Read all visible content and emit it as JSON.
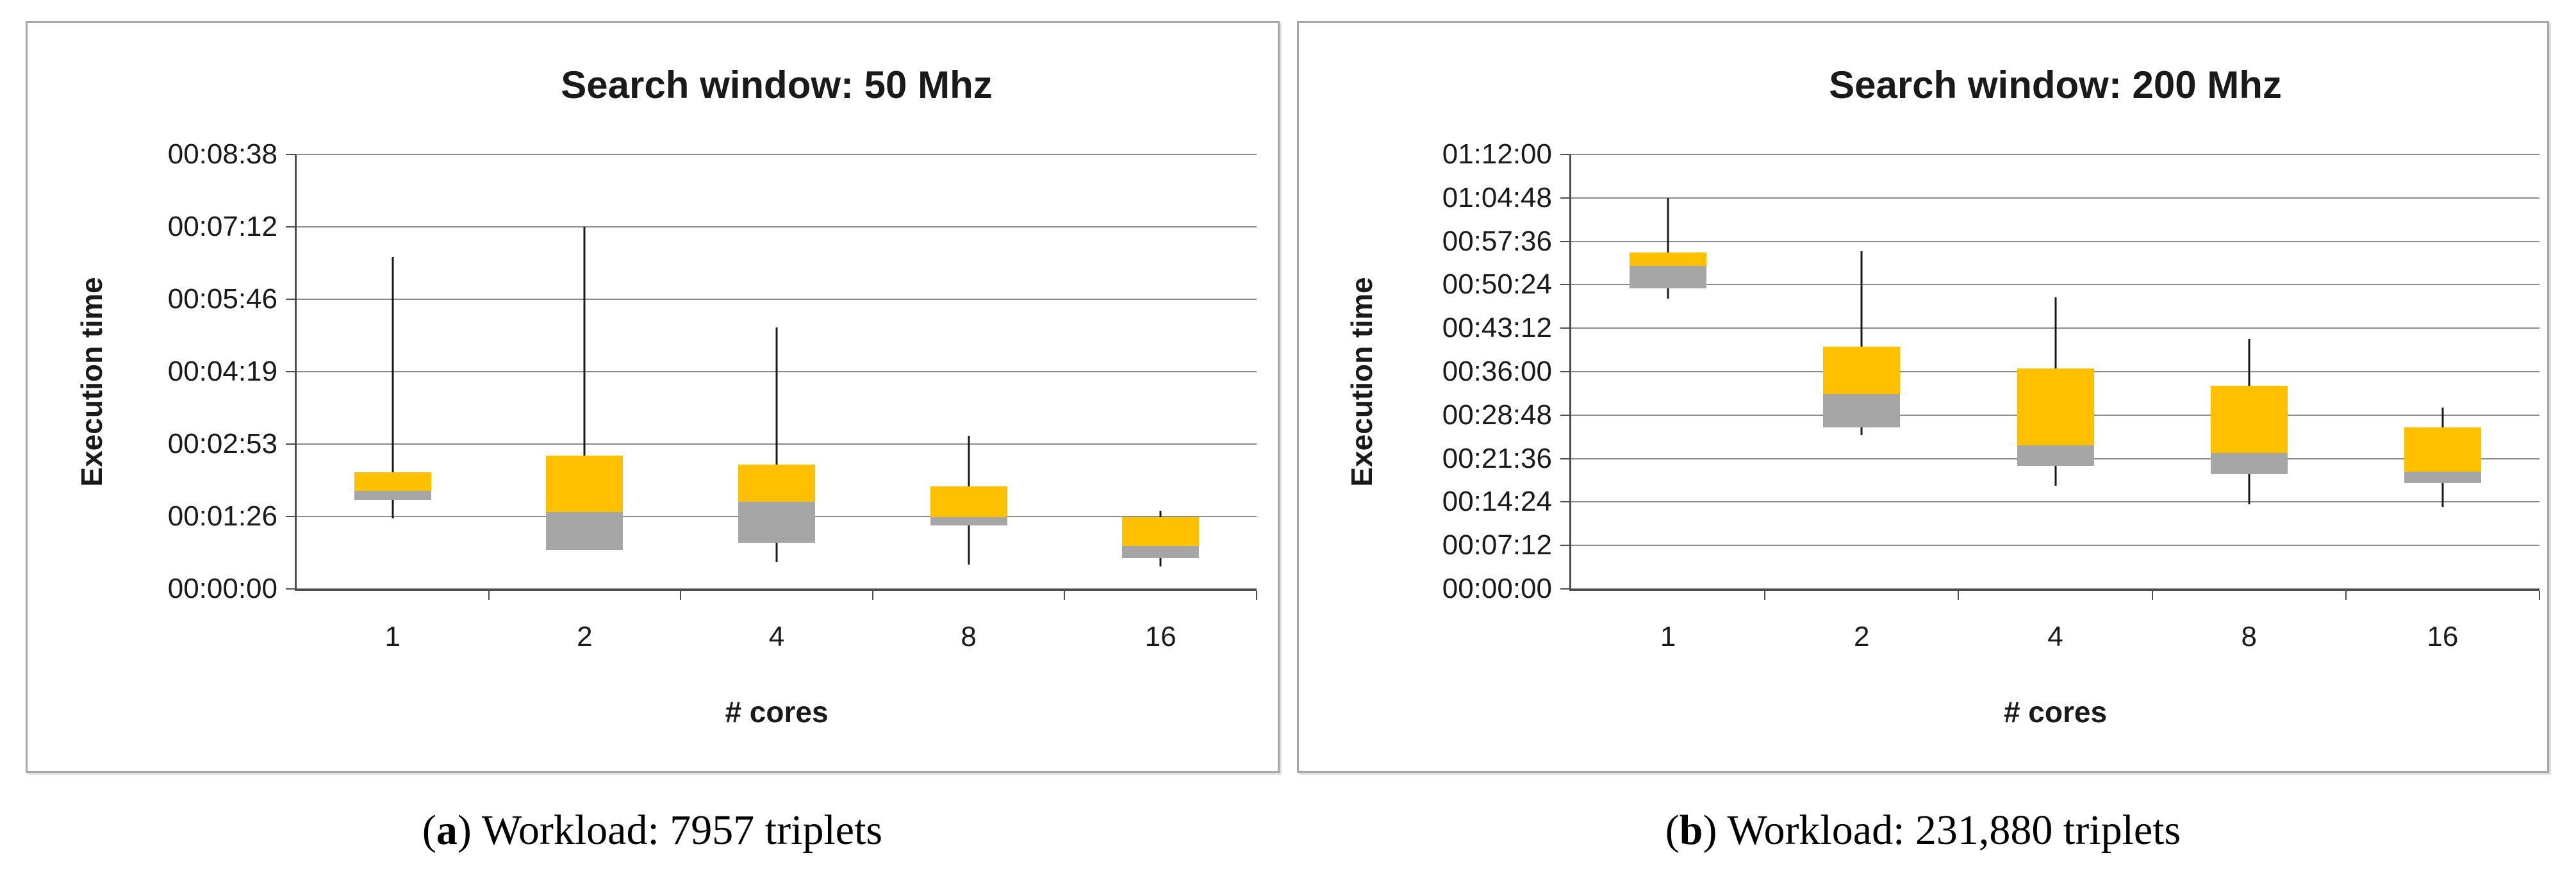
{
  "figure": {
    "captions": [
      {
        "prefix_open": "(",
        "letter": "a",
        "prefix_close": ")",
        "text": "Workload: 7957 triplets"
      },
      {
        "prefix_open": "(",
        "letter": "b",
        "prefix_close": ")",
        "text": "Workload: 231,880 triplets"
      }
    ]
  },
  "colors": {
    "box_upper": "#FFC000",
    "box_lower": "#A6A6A6",
    "whisker": "#1A1A1A",
    "gridline": "#8C8C8C",
    "axis": "#4D4D4D",
    "panel_border": "#A6A6A6",
    "text": "#1A1A1A"
  },
  "chart_data": [
    {
      "type": "boxplot",
      "title": "Search window: 50 Mhz",
      "x_axis_label": "# cores",
      "y_axis_label": "Execution time",
      "y_max_seconds": 518.4,
      "grid": true,
      "legend": "none",
      "y_ticks": [
        {
          "label": "00:08:38",
          "seconds": 518.4
        },
        {
          "label": "00:07:12",
          "seconds": 432
        },
        {
          "label": "00:05:46",
          "seconds": 345.6
        },
        {
          "label": "00:04:19",
          "seconds": 259.2
        },
        {
          "label": "00:02:53",
          "seconds": 172.8
        },
        {
          "label": "00:01:26",
          "seconds": 86.4
        },
        {
          "label": "00:00:00",
          "seconds": 0
        }
      ],
      "categories": [
        "1",
        "2",
        "4",
        "8",
        "16"
      ],
      "boxes": [
        {
          "category": "1",
          "min_s": 84,
          "q1_s": 106,
          "median_s": 117,
          "q3_s": 139,
          "max_s": 396,
          "min": "00:01:24",
          "q1": "00:01:46",
          "median": "00:01:57",
          "q3": "00:02:19",
          "max": "00:06:36"
        },
        {
          "category": "2",
          "min_s": 47,
          "q1_s": 47,
          "median_s": 92,
          "q3_s": 159,
          "max_s": 432,
          "min": "00:00:47",
          "q1": "00:00:47",
          "median": "00:01:32",
          "q3": "00:02:39",
          "max": "00:07:12"
        },
        {
          "category": "4",
          "min_s": 32,
          "q1_s": 55,
          "median_s": 104,
          "q3_s": 148,
          "max_s": 312,
          "min": "00:00:32",
          "q1": "00:00:55",
          "median": "00:01:44",
          "q3": "00:02:28",
          "max": "00:05:12"
        },
        {
          "category": "8",
          "min_s": 29,
          "q1_s": 76,
          "median_s": 86,
          "q3_s": 122,
          "max_s": 183,
          "min": "00:00:29",
          "q1": "00:01:16",
          "median": "00:01:26",
          "q3": "00:02:02",
          "max": "00:03:03"
        },
        {
          "category": "16",
          "min_s": 27,
          "q1_s": 37,
          "median_s": 51,
          "q3_s": 86,
          "max_s": 93,
          "min": "00:00:27",
          "q1": "00:00:37",
          "median": "00:00:51",
          "q3": "00:01:26",
          "max": "00:01:33"
        }
      ]
    },
    {
      "type": "boxplot",
      "title": "Search window: 200 Mhz",
      "x_axis_label": "# cores",
      "y_axis_label": "Execution time",
      "y_max_seconds": 4320,
      "grid": true,
      "legend": "none",
      "y_ticks": [
        {
          "label": "01:12:00",
          "seconds": 4320
        },
        {
          "label": "01:04:48",
          "seconds": 3888
        },
        {
          "label": "00:57:36",
          "seconds": 3456
        },
        {
          "label": "00:50:24",
          "seconds": 3024
        },
        {
          "label": "00:43:12",
          "seconds": 2592
        },
        {
          "label": "00:36:00",
          "seconds": 2160
        },
        {
          "label": "00:28:48",
          "seconds": 1728
        },
        {
          "label": "00:21:36",
          "seconds": 1296
        },
        {
          "label": "00:14:24",
          "seconds": 864
        },
        {
          "label": "00:07:12",
          "seconds": 432
        },
        {
          "label": "00:00:00",
          "seconds": 0
        }
      ],
      "categories": [
        "1",
        "2",
        "4",
        "8",
        "16"
      ],
      "boxes": [
        {
          "category": "1",
          "min_s": 2886,
          "q1_s": 2986,
          "median_s": 3210,
          "q3_s": 3342,
          "max_s": 3888,
          "min": "00:48:06",
          "q1": "00:49:46",
          "median": "00:53:30",
          "q3": "00:55:42",
          "max": "01:04:48"
        },
        {
          "category": "2",
          "min_s": 1528,
          "q1_s": 1603,
          "median_s": 1934,
          "q3_s": 2408,
          "max_s": 3358,
          "min": "00:25:28",
          "q1": "00:26:43",
          "median": "00:32:14",
          "q3": "00:40:08",
          "max": "00:55:58"
        },
        {
          "category": "4",
          "min_s": 1027,
          "q1_s": 1226,
          "median_s": 1425,
          "q3_s": 2192,
          "max_s": 2898,
          "min": "00:17:07",
          "q1": "00:20:26",
          "median": "00:23:45",
          "q3": "00:36:32",
          "max": "00:48:18"
        },
        {
          "category": "8",
          "min_s": 841,
          "q1_s": 1143,
          "median_s": 1349,
          "q3_s": 2022,
          "max_s": 2482,
          "min": "00:14:01",
          "q1": "00:19:03",
          "median": "00:22:29",
          "q3": "00:33:42",
          "max": "00:41:22"
        },
        {
          "category": "16",
          "min_s": 817,
          "q1_s": 1050,
          "median_s": 1166,
          "q3_s": 1608,
          "max_s": 1802,
          "min": "00:13:37",
          "q1": "00:17:30",
          "median": "00:19:26",
          "q3": "00:26:48",
          "max": "00:30:02"
        }
      ]
    }
  ]
}
